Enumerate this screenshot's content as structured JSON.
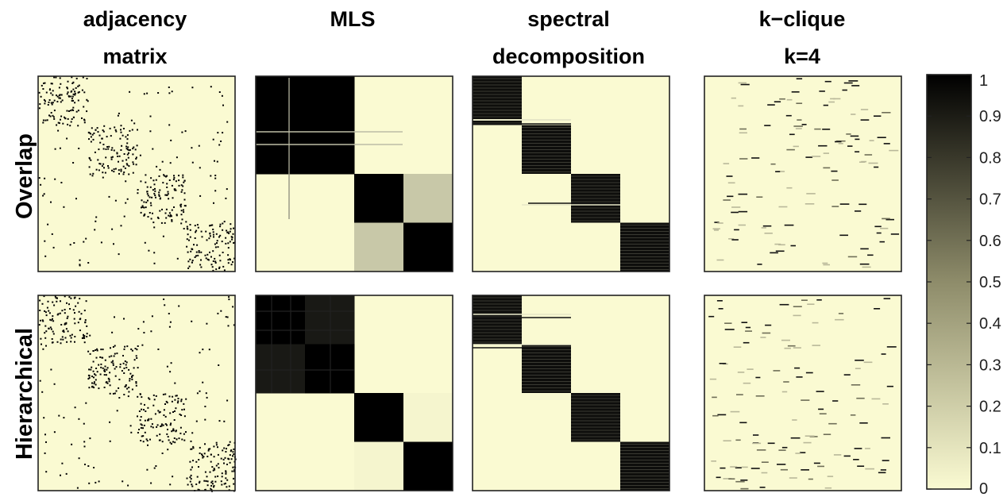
{
  "chart_data": {
    "type": "heatmap",
    "columns": [
      {
        "title_line1": "adjacency",
        "title_line2": "matrix"
      },
      {
        "title_line1": "MLS",
        "title_line2": ""
      },
      {
        "title_line1": "spectral",
        "title_line2": "decomposition"
      },
      {
        "title_line1": "k−clique",
        "title_line2": "k=4"
      }
    ],
    "rows": [
      "Overlap",
      "Hierarchical"
    ],
    "colorbar": {
      "min": 0,
      "max": 1,
      "ticks": [
        "0",
        "0.1",
        "0.2",
        "0.3",
        "0.4",
        "0.5",
        "0.6",
        "0.7",
        "0.8",
        "0.9",
        "1"
      ],
      "color_low": "#fafad2",
      "color_high": "#000000"
    },
    "blocks": {
      "count": 4,
      "overlap_mls_values": [
        [
          1,
          1,
          0,
          0
        ],
        [
          1,
          1,
          0,
          0
        ],
        [
          0,
          0,
          1,
          0.2
        ],
        [
          0,
          0,
          0.2,
          1
        ]
      ],
      "hierarchical_mls_values": [
        [
          1,
          0.9,
          0,
          0
        ],
        [
          0.9,
          1,
          0,
          0
        ],
        [
          0,
          0,
          1,
          0.02
        ],
        [
          0,
          0,
          0.02,
          1
        ]
      ]
    }
  }
}
